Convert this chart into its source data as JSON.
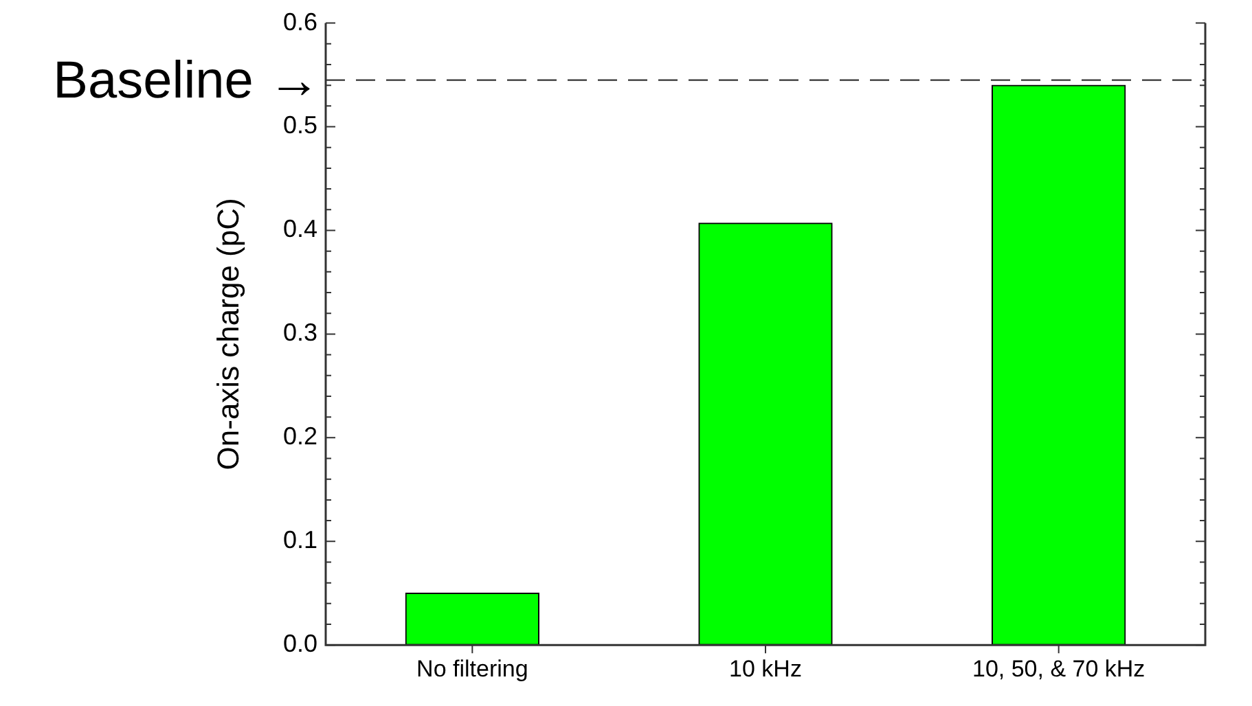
{
  "chart_data": {
    "type": "bar",
    "ylabel": "On-axis charge (pC)",
    "categories": [
      "No filtering",
      "10 kHz",
      "10, 50, & 70 kHz"
    ],
    "values": [
      0.05,
      0.407,
      0.54
    ],
    "color": "#00ff00",
    "ylim": [
      0,
      0.6
    ],
    "yticks": [
      {
        "value": 0,
        "label": "0.0"
      },
      {
        "value": 0.02,
        "label": null
      },
      {
        "value": 0.04,
        "label": null
      },
      {
        "value": 0.06,
        "label": null
      },
      {
        "value": 0.08,
        "label": null
      },
      {
        "value": 0.1,
        "label": "0.1"
      },
      {
        "value": 0.12,
        "label": null
      },
      {
        "value": 0.14,
        "label": null
      },
      {
        "value": 0.16,
        "label": null
      },
      {
        "value": 0.18,
        "label": null
      },
      {
        "value": 0.2,
        "label": "0.2"
      },
      {
        "value": 0.22,
        "label": null
      },
      {
        "value": 0.24,
        "label": null
      },
      {
        "value": 0.26,
        "label": null
      },
      {
        "value": 0.28,
        "label": null
      },
      {
        "value": 0.3,
        "label": "0.3"
      },
      {
        "value": 0.32,
        "label": null
      },
      {
        "value": 0.34,
        "label": null
      },
      {
        "value": 0.36,
        "label": null
      },
      {
        "value": 0.38,
        "label": null
      },
      {
        "value": 0.4,
        "label": "0.4"
      },
      {
        "value": 0.42,
        "label": null
      },
      {
        "value": 0.44,
        "label": null
      },
      {
        "value": 0.46,
        "label": null
      },
      {
        "value": 0.48,
        "label": null
      },
      {
        "value": 0.5,
        "label": "0.5"
      },
      {
        "value": 0.52,
        "label": null
      },
      {
        "value": 0.54,
        "label": null
      },
      {
        "value": 0.56,
        "label": null
      },
      {
        "value": 0.58,
        "label": null
      },
      {
        "value": 0.6,
        "label": "0.6"
      }
    ],
    "ref_lines": [
      {
        "axis": "y",
        "value": 0.545,
        "label": "Baseline →",
        "color": "#333333",
        "line_style": "dashed"
      }
    ],
    "grid": false,
    "legend": false
  }
}
